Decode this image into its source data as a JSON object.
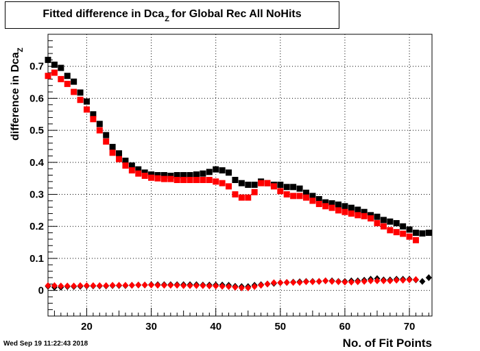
{
  "chart_data": {
    "type": "scatter",
    "title": "Fitted difference in Dca",
    "title_subscript": "Z",
    "title_suffix": "for Global Rec All NoHits",
    "xlabel": "No. of Fit Points",
    "ylabel": "difference in Dca",
    "ylabel_subscript": "Z",
    "xlim": [
      14,
      73.5
    ],
    "ylim": [
      -0.08,
      0.8
    ],
    "x_ticks": [
      "20",
      "30",
      "40",
      "50",
      "60",
      "70"
    ],
    "y_ticks": [
      "0",
      "0.1",
      "0.2",
      "0.3",
      "0.4",
      "0.5",
      "0.6",
      "0.7"
    ],
    "grid": true,
    "series": [
      {
        "color": "#000000",
        "marker": "square",
        "x": [
          14,
          15,
          16,
          17,
          18,
          19,
          20,
          21,
          22,
          23,
          24,
          25,
          26,
          27,
          28,
          29,
          30,
          31,
          32,
          33,
          34,
          35,
          36,
          37,
          38,
          39,
          40,
          41,
          42,
          43,
          44,
          45,
          46,
          47,
          48,
          49,
          50,
          51,
          52,
          53,
          54,
          55,
          56,
          57,
          58,
          59,
          60,
          61,
          62,
          63,
          64,
          65,
          66,
          67,
          68,
          69,
          70,
          71,
          72,
          73
        ],
        "y": [
          0.72,
          0.705,
          0.695,
          0.67,
          0.652,
          0.618,
          0.59,
          0.55,
          0.52,
          0.485,
          0.448,
          0.428,
          0.405,
          0.39,
          0.378,
          0.368,
          0.362,
          0.36,
          0.36,
          0.358,
          0.36,
          0.36,
          0.36,
          0.362,
          0.365,
          0.37,
          0.378,
          0.375,
          0.368,
          0.345,
          0.335,
          0.33,
          0.33,
          0.34,
          0.335,
          0.33,
          0.33,
          0.323,
          0.323,
          0.318,
          0.305,
          0.295,
          0.285,
          0.275,
          0.272,
          0.268,
          0.263,
          0.258,
          0.252,
          0.245,
          0.235,
          0.23,
          0.22,
          0.215,
          0.21,
          0.2,
          0.19,
          0.18,
          0.178,
          0.18
        ]
      },
      {
        "color": "#ff0000",
        "marker": "square",
        "x": [
          14,
          15,
          16,
          17,
          18,
          19,
          20,
          21,
          22,
          23,
          24,
          25,
          26,
          27,
          28,
          29,
          30,
          31,
          32,
          33,
          34,
          35,
          36,
          37,
          38,
          39,
          40,
          41,
          42,
          43,
          44,
          45,
          46,
          47,
          48,
          49,
          50,
          51,
          52,
          53,
          54,
          55,
          56,
          57,
          58,
          59,
          60,
          61,
          62,
          63,
          64,
          65,
          66,
          67,
          68,
          69,
          70,
          71
        ],
        "y": [
          0.67,
          0.68,
          0.66,
          0.645,
          0.62,
          0.595,
          0.565,
          0.535,
          0.5,
          0.465,
          0.43,
          0.41,
          0.39,
          0.375,
          0.365,
          0.358,
          0.352,
          0.35,
          0.348,
          0.348,
          0.345,
          0.345,
          0.345,
          0.345,
          0.345,
          0.345,
          0.34,
          0.335,
          0.325,
          0.3,
          0.29,
          0.29,
          0.307,
          0.335,
          0.335,
          0.325,
          0.31,
          0.3,
          0.295,
          0.295,
          0.29,
          0.28,
          0.27,
          0.263,
          0.258,
          0.25,
          0.245,
          0.24,
          0.235,
          0.232,
          0.225,
          0.21,
          0.2,
          0.188,
          0.182,
          0.177,
          0.168,
          0.157
        ]
      },
      {
        "color": "#000000",
        "marker": "diamond",
        "x": [
          14,
          15,
          16,
          17,
          18,
          19,
          20,
          21,
          22,
          23,
          24,
          25,
          26,
          27,
          28,
          29,
          30,
          31,
          32,
          33,
          34,
          35,
          36,
          37,
          38,
          39,
          40,
          41,
          42,
          43,
          44,
          45,
          46,
          47,
          48,
          49,
          50,
          51,
          52,
          53,
          54,
          55,
          56,
          57,
          58,
          59,
          60,
          61,
          62,
          63,
          64,
          65,
          66,
          67,
          68,
          69,
          70,
          71,
          72,
          73
        ],
        "y": [
          0.013,
          0.01,
          0.01,
          0.012,
          0.012,
          0.013,
          0.014,
          0.014,
          0.014,
          0.014,
          0.015,
          0.015,
          0.015,
          0.016,
          0.017,
          0.017,
          0.018,
          0.018,
          0.018,
          0.018,
          0.018,
          0.018,
          0.018,
          0.018,
          0.017,
          0.017,
          0.017,
          0.017,
          0.016,
          0.013,
          0.012,
          0.012,
          0.016,
          0.018,
          0.02,
          0.022,
          0.024,
          0.025,
          0.026,
          0.027,
          0.028,
          0.028,
          0.028,
          0.03,
          0.03,
          0.028,
          0.028,
          0.03,
          0.03,
          0.032,
          0.035,
          0.037,
          0.033,
          0.033,
          0.035,
          0.035,
          0.035,
          0.033,
          0.028,
          0.04
        ]
      },
      {
        "color": "#ff0000",
        "marker": "diamond",
        "x": [
          14,
          15,
          16,
          17,
          18,
          19,
          20,
          21,
          22,
          23,
          24,
          25,
          26,
          27,
          28,
          29,
          30,
          31,
          32,
          33,
          34,
          35,
          36,
          37,
          38,
          39,
          40,
          41,
          42,
          43,
          44,
          45,
          46,
          47,
          48,
          49,
          50,
          51,
          52,
          53,
          54,
          55,
          56,
          57,
          58,
          59,
          60,
          61,
          62,
          63,
          64,
          65,
          66,
          67,
          68,
          69,
          70,
          71
        ],
        "y": [
          0.015,
          0.015,
          0.014,
          0.014,
          0.014,
          0.015,
          0.015,
          0.015,
          0.015,
          0.015,
          0.016,
          0.016,
          0.016,
          0.016,
          0.017,
          0.017,
          0.017,
          0.016,
          0.016,
          0.016,
          0.016,
          0.015,
          0.015,
          0.015,
          0.015,
          0.014,
          0.014,
          0.013,
          0.012,
          0.01,
          0.008,
          0.008,
          0.012,
          0.016,
          0.02,
          0.024,
          0.024,
          0.025,
          0.025,
          0.025,
          0.027,
          0.027,
          0.028,
          0.03,
          0.028,
          0.027,
          0.026,
          0.026,
          0.027,
          0.028,
          0.03,
          0.03,
          0.03,
          0.03,
          0.032,
          0.032,
          0.033,
          0.034
        ]
      }
    ]
  },
  "footer": {
    "date": "Wed Sep 19 11:22:43 2018"
  }
}
